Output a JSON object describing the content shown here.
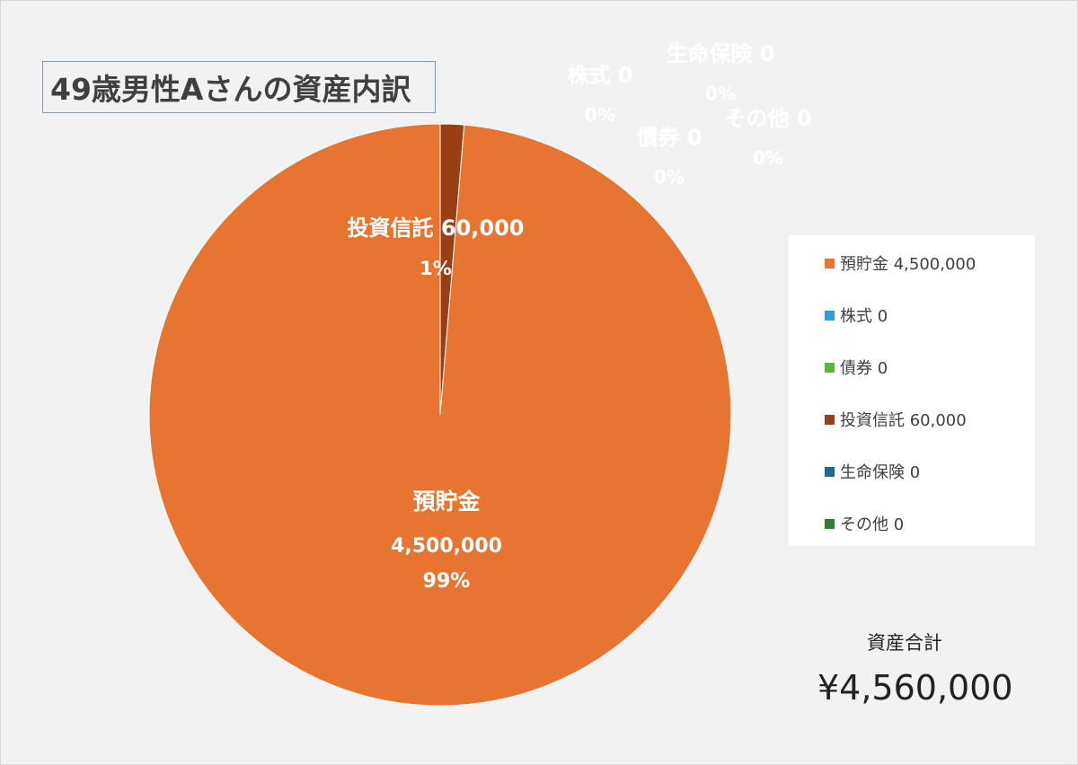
{
  "chart_data": {
    "type": "pie",
    "title": "49歳男性Aさんの資産内訳",
    "slices": [
      {
        "name": "預貯金",
        "value": 4500000,
        "value_label": "4,500,000",
        "percent": "99%",
        "color": "#E87432",
        "legend": "預貯金 4,500,000"
      },
      {
        "name": "株式",
        "value": 0,
        "value_label": "0",
        "percent": "0%",
        "color": "#2E9FD6",
        "legend": "株式 0"
      },
      {
        "name": "債券",
        "value": 0,
        "value_label": "0",
        "percent": "0%",
        "color": "#5CB33E",
        "legend": "債券 0"
      },
      {
        "name": "投資信託",
        "value": 60000,
        "value_label": "60,000",
        "percent": "1%",
        "color": "#9A3E14",
        "legend": "投資信託 60,000"
      },
      {
        "name": "生命保険",
        "value": 0,
        "value_label": "0",
        "percent": "0%",
        "color": "#1F6A8C",
        "legend": "生命保険 0"
      },
      {
        "name": "その他",
        "value": 0,
        "value_label": "0",
        "percent": "0%",
        "color": "#2E7D32",
        "legend": "その他 0"
      }
    ],
    "legend_position": "right"
  },
  "summary": {
    "total_label": "資産合計",
    "total_value": "¥4,560,000"
  }
}
